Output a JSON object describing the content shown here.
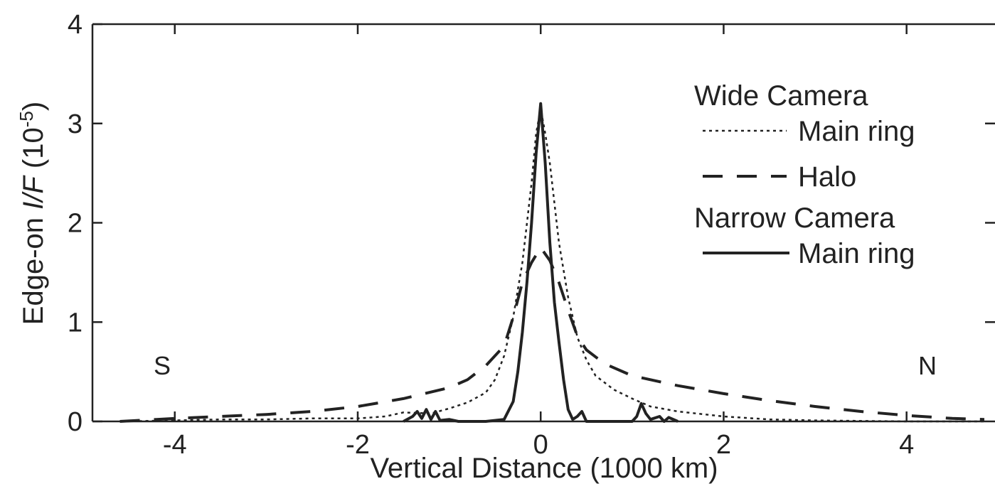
{
  "chart_data": {
    "type": "line",
    "xlabel": "Vertical Distance (1000 km)",
    "ylabel": {
      "prefix": "Edge-on ",
      "italic": "I/F",
      "suffix_open": " (10",
      "sup": "-5",
      "suffix_close": ")"
    },
    "xlim": [
      -4.9,
      4.85
    ],
    "ylim": [
      0,
      4
    ],
    "x_ticks": [
      -4,
      -2,
      0,
      2,
      4
    ],
    "y_ticks": [
      0,
      1,
      2,
      3,
      4
    ],
    "x_tick_labels": [
      "-4",
      "-2",
      "0",
      "2",
      "4"
    ],
    "y_tick_labels": [
      "0",
      "1",
      "2",
      "3",
      "4"
    ],
    "grid": false,
    "annotations": {
      "south": "S",
      "north": "N"
    },
    "legend": {
      "placement": "top-right",
      "groups": [
        {
          "title": "Wide Camera",
          "entries": [
            {
              "label": "Main ring",
              "series": "wide_main"
            },
            {
              "label": "Halo",
              "series": "wide_halo"
            }
          ]
        },
        {
          "title": "Narrow Camera",
          "entries": [
            {
              "label": "Main ring",
              "series": "narrow_main"
            }
          ]
        }
      ]
    },
    "series": [
      {
        "id": "wide_main",
        "style": "dotted",
        "color": "#222222",
        "points": [
          [
            -4.6,
            0.0
          ],
          [
            -4.0,
            0.01
          ],
          [
            -3.5,
            0.02
          ],
          [
            -3.0,
            0.02
          ],
          [
            -2.5,
            0.03
          ],
          [
            -2.0,
            0.03
          ],
          [
            -1.7,
            0.05
          ],
          [
            -1.5,
            0.09
          ],
          [
            -1.2,
            0.08
          ],
          [
            -1.0,
            0.13
          ],
          [
            -0.8,
            0.19
          ],
          [
            -0.6,
            0.29
          ],
          [
            -0.5,
            0.42
          ],
          [
            -0.4,
            0.66
          ],
          [
            -0.3,
            1.05
          ],
          [
            -0.2,
            1.6
          ],
          [
            -0.1,
            2.4
          ],
          [
            -0.05,
            2.9
          ],
          [
            0.0,
            3.15
          ],
          [
            0.05,
            2.9
          ],
          [
            0.1,
            2.6
          ],
          [
            0.2,
            1.8
          ],
          [
            0.3,
            1.25
          ],
          [
            0.4,
            0.85
          ],
          [
            0.5,
            0.62
          ],
          [
            0.6,
            0.46
          ],
          [
            0.8,
            0.32
          ],
          [
            1.0,
            0.23
          ],
          [
            1.2,
            0.15
          ],
          [
            1.5,
            0.1
          ],
          [
            2.0,
            0.05
          ],
          [
            2.5,
            0.02
          ],
          [
            3.0,
            0.01
          ],
          [
            4.0,
            0.0
          ],
          [
            4.85,
            0.0
          ]
        ]
      },
      {
        "id": "wide_halo",
        "style": "dashed",
        "color": "#222222",
        "points": [
          [
            -4.6,
            0.0
          ],
          [
            -4.2,
            0.02
          ],
          [
            -4.0,
            0.03
          ],
          [
            -3.5,
            0.05
          ],
          [
            -3.0,
            0.07
          ],
          [
            -2.5,
            0.1
          ],
          [
            -2.0,
            0.15
          ],
          [
            -1.5,
            0.23
          ],
          [
            -1.0,
            0.34
          ],
          [
            -0.8,
            0.42
          ],
          [
            -0.6,
            0.56
          ],
          [
            -0.4,
            0.76
          ],
          [
            -0.3,
            1.05
          ],
          [
            -0.2,
            1.4
          ],
          [
            -0.1,
            1.6
          ],
          [
            0.0,
            1.75
          ],
          [
            0.1,
            1.62
          ],
          [
            0.2,
            1.4
          ],
          [
            0.3,
            1.12
          ],
          [
            0.4,
            0.86
          ],
          [
            0.5,
            0.72
          ],
          [
            0.7,
            0.58
          ],
          [
            1.0,
            0.46
          ],
          [
            1.5,
            0.36
          ],
          [
            2.0,
            0.28
          ],
          [
            2.5,
            0.21
          ],
          [
            3.0,
            0.15
          ],
          [
            3.5,
            0.1
          ],
          [
            4.0,
            0.06
          ],
          [
            4.5,
            0.03
          ],
          [
            4.85,
            0.02
          ]
        ]
      },
      {
        "id": "narrow_main",
        "style": "solid",
        "color": "#222222",
        "points": [
          [
            -1.5,
            0.0
          ],
          [
            -1.4,
            0.05
          ],
          [
            -1.35,
            0.1
          ],
          [
            -1.3,
            0.03
          ],
          [
            -1.25,
            0.12
          ],
          [
            -1.2,
            0.02
          ],
          [
            -1.15,
            0.1
          ],
          [
            -1.1,
            0.01
          ],
          [
            -1.0,
            0.02
          ],
          [
            -0.9,
            0.0
          ],
          [
            -0.6,
            0.0
          ],
          [
            -0.4,
            0.02
          ],
          [
            -0.3,
            0.2
          ],
          [
            -0.25,
            0.5
          ],
          [
            -0.2,
            0.9
          ],
          [
            -0.15,
            1.4
          ],
          [
            -0.1,
            2.0
          ],
          [
            -0.05,
            2.7
          ],
          [
            0.0,
            3.2
          ],
          [
            0.05,
            2.6
          ],
          [
            0.1,
            1.8
          ],
          [
            0.15,
            1.2
          ],
          [
            0.2,
            0.8
          ],
          [
            0.25,
            0.42
          ],
          [
            0.3,
            0.12
          ],
          [
            0.35,
            0.02
          ],
          [
            0.4,
            0.05
          ],
          [
            0.45,
            0.1
          ],
          [
            0.5,
            0.0
          ],
          [
            0.6,
            0.0
          ],
          [
            1.0,
            0.0
          ],
          [
            1.05,
            0.05
          ],
          [
            1.1,
            0.18
          ],
          [
            1.15,
            0.08
          ],
          [
            1.2,
            0.02
          ],
          [
            1.3,
            0.05
          ],
          [
            1.35,
            0.0
          ],
          [
            1.4,
            0.04
          ],
          [
            1.5,
            0.0
          ]
        ]
      }
    ]
  }
}
